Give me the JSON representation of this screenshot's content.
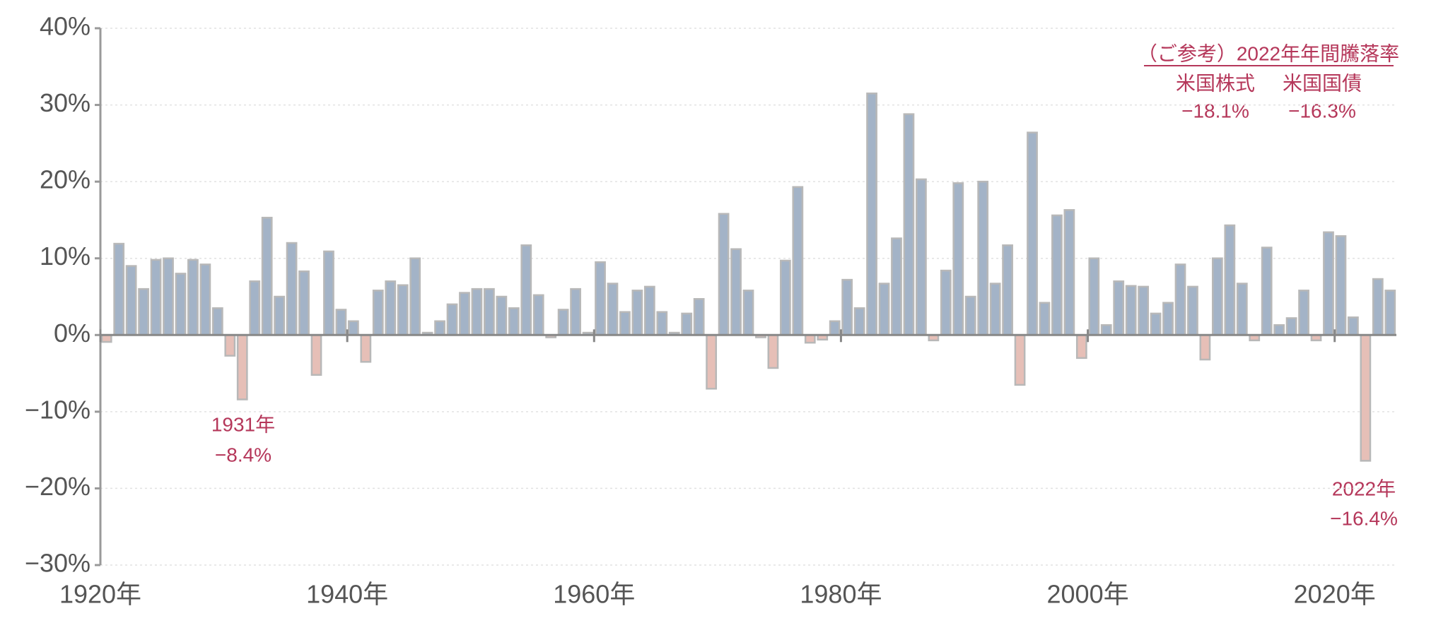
{
  "chart_data": {
    "type": "bar",
    "x": [
      1920,
      1921,
      1922,
      1923,
      1924,
      1925,
      1926,
      1927,
      1928,
      1929,
      1930,
      1931,
      1932,
      1933,
      1934,
      1935,
      1936,
      1937,
      1938,
      1939,
      1940,
      1941,
      1942,
      1943,
      1944,
      1945,
      1946,
      1947,
      1948,
      1949,
      1950,
      1951,
      1952,
      1953,
      1954,
      1955,
      1956,
      1957,
      1958,
      1959,
      1960,
      1961,
      1962,
      1963,
      1964,
      1965,
      1966,
      1967,
      1968,
      1969,
      1970,
      1971,
      1972,
      1973,
      1974,
      1975,
      1976,
      1977,
      1978,
      1979,
      1980,
      1981,
      1982,
      1983,
      1984,
      1985,
      1986,
      1987,
      1988,
      1989,
      1990,
      1991,
      1992,
      1993,
      1994,
      1995,
      1996,
      1997,
      1998,
      1999,
      2000,
      2001,
      2002,
      2003,
      2004,
      2005,
      2006,
      2007,
      2008,
      2009,
      2010,
      2011,
      2012,
      2013,
      2014,
      2015,
      2016,
      2017,
      2018,
      2019,
      2020,
      2021,
      2022,
      2023,
      2024
    ],
    "values": [
      -0.9,
      11.9,
      9.0,
      6.0,
      9.8,
      10.0,
      8.0,
      9.8,
      9.2,
      3.5,
      -2.7,
      -8.4,
      7.0,
      15.3,
      5.0,
      12.0,
      8.3,
      -5.2,
      10.9,
      3.3,
      1.8,
      -3.5,
      5.8,
      7.0,
      6.5,
      10.0,
      0.3,
      1.8,
      4.0,
      5.5,
      6.0,
      6.0,
      5.0,
      3.5,
      11.7,
      5.2,
      -0.3,
      3.3,
      6.0,
      0.3,
      9.5,
      6.7,
      3.0,
      5.8,
      6.3,
      3.0,
      0.3,
      2.8,
      4.7,
      -7.0,
      15.8,
      11.2,
      5.8,
      -0.3,
      -4.3,
      9.7,
      19.3,
      -1.0,
      -0.6,
      1.8,
      7.2,
      3.5,
      31.5,
      6.7,
      12.6,
      28.8,
      20.3,
      -0.7,
      8.4,
      19.8,
      5.0,
      20.0,
      6.7,
      11.7,
      -6.5,
      26.4,
      4.2,
      15.6,
      16.3,
      -3.0,
      10.0,
      1.3,
      7.0,
      6.4,
      6.3,
      2.8,
      4.2,
      9.2,
      6.3,
      -3.2,
      10.0,
      14.3,
      6.7,
      -0.7,
      11.4,
      1.3,
      2.2,
      5.8,
      -0.7,
      13.4,
      12.9,
      2.3,
      -16.4,
      7.3,
      5.8
    ],
    "positive_color": "#a3b3c7",
    "negative_color": "#e6bfb7",
    "xlim": [
      1920,
      2025
    ],
    "xticks": [
      {
        "value": 1920,
        "label": "1920年"
      },
      {
        "value": 1940,
        "label": "1940年"
      },
      {
        "value": 1960,
        "label": "1960年"
      },
      {
        "value": 1980,
        "label": "1980年"
      },
      {
        "value": 2000,
        "label": "2000年"
      },
      {
        "value": 2020,
        "label": "2020年"
      }
    ],
    "ylim": [
      -30,
      40
    ],
    "yticks": [
      {
        "value": -30,
        "label": "−30%"
      },
      {
        "value": -20,
        "label": "−20%"
      },
      {
        "value": -10,
        "label": "−10%"
      },
      {
        "value": 0,
        "label": "0%"
      },
      {
        "value": 10,
        "label": "10%"
      },
      {
        "value": 20,
        "label": "20%"
      },
      {
        "value": 30,
        "label": "30%"
      },
      {
        "value": 40,
        "label": "40%"
      }
    ],
    "grid": true,
    "annotations": [
      {
        "lines": [
          "1931年",
          "−8.4%"
        ]
      },
      {
        "lines": [
          "2022年",
          "−16.4%"
        ]
      }
    ],
    "reference": {
      "title": "（ご参考）2022年年間騰落率",
      "items": [
        {
          "name": "米国株式",
          "value": "−18.1%"
        },
        {
          "name": "米国国債",
          "value": "−16.3%"
        }
      ]
    }
  }
}
